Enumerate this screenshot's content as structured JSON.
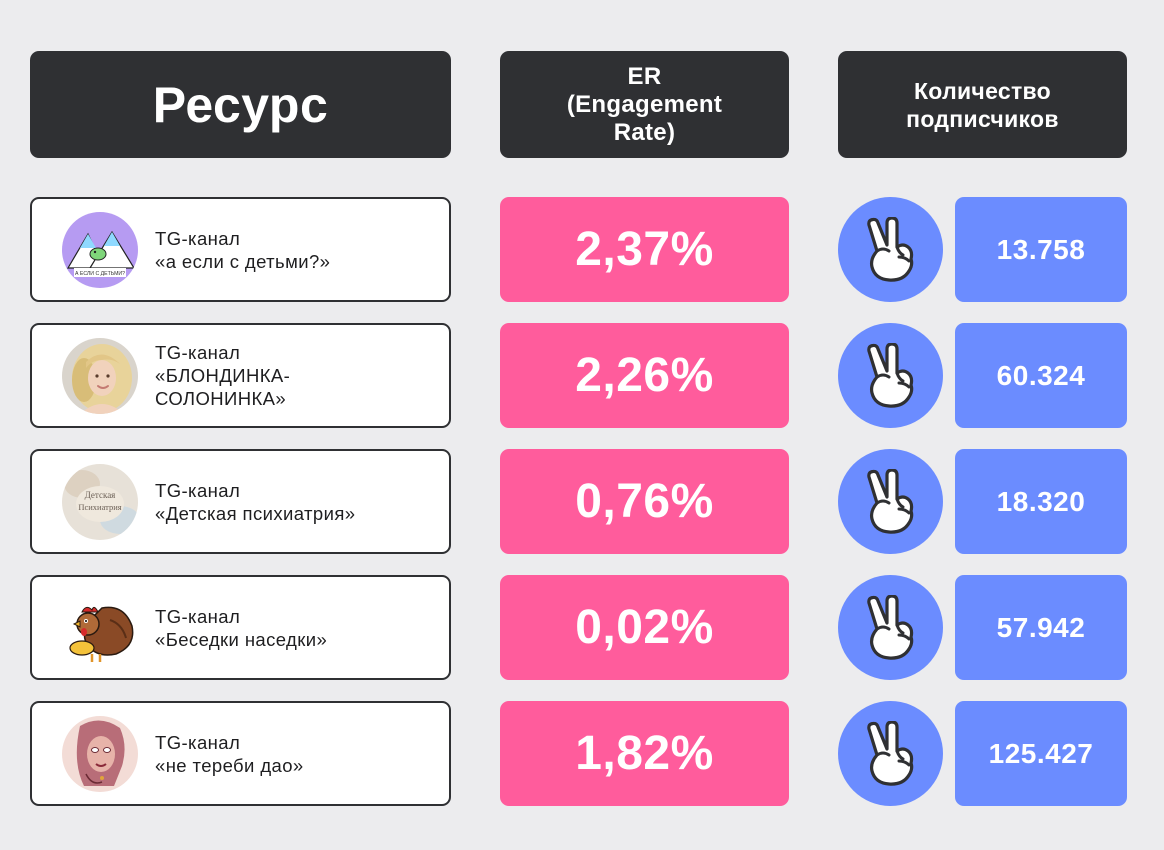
{
  "header": {
    "resource": "Ресурс",
    "er": "ER\n(Engagement\nRate)",
    "subscribers": "Количество\nподписчиков"
  },
  "colors": {
    "dark": "#2f3033",
    "pink": "#ff5c9c",
    "blue": "#6b8cff",
    "background": "#ececee"
  },
  "rows": [
    {
      "type": "TG-канал",
      "name_lines": [
        "«а если с детьми?»"
      ],
      "er": "2,37%",
      "subscribers": "13.758",
      "avatar_text": "А ЕСЛИ С ДЕТЬМИ?",
      "icon": "victory-hand-icon"
    },
    {
      "type": "TG-канал",
      "name_lines": [
        "«БЛОНДИНКА-",
        "СОЛОНИНКА»"
      ],
      "er": "2,26%",
      "subscribers": "60.324",
      "icon": "victory-hand-icon"
    },
    {
      "type": "TG-канал",
      "name_lines": [
        "«Детская психиатрия»"
      ],
      "er": "0,76%",
      "subscribers": "18.320",
      "avatar_text_1": "Детская",
      "avatar_text_2": "Психиатрия",
      "icon": "victory-hand-icon"
    },
    {
      "type": "TG-канал",
      "name_lines": [
        "«Беседки наседки»"
      ],
      "er": "0,02%",
      "subscribers": "57.942",
      "icon": "victory-hand-icon"
    },
    {
      "type": "TG-канал",
      "name_lines": [
        "«не тереби дао»"
      ],
      "er": "1,82%",
      "subscribers": "125.427",
      "icon": "victory-hand-icon"
    }
  ]
}
